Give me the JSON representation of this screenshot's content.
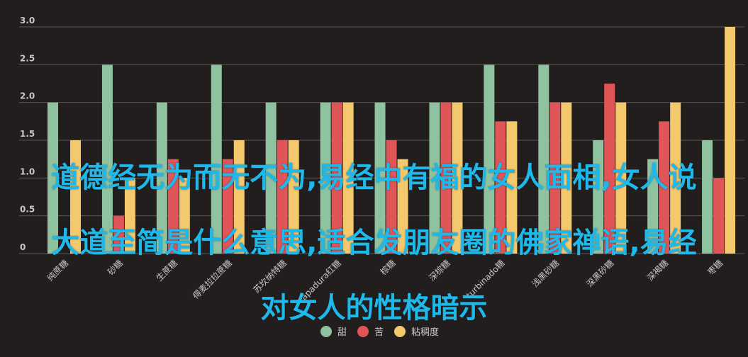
{
  "chart_data": {
    "type": "bar",
    "categories": [
      "纯蔗糖",
      "砂糖",
      "生蔗糖",
      "得麦拉拉蔗糖",
      "苏坎纳特糖",
      "rapadura红糖",
      "棕糖",
      "深棕糖",
      "turbinado糖",
      "浅黑砂糖",
      "深黑砂糖",
      "深褐糖",
      "枣糖"
    ],
    "series": [
      {
        "name": "甜",
        "color": "#8fc3a0",
        "values": [
          2.0,
          2.5,
          2.0,
          2.5,
          2.0,
          2.0,
          2.0,
          2.0,
          2.5,
          2.5,
          1.5,
          1.25,
          1.5
        ]
      },
      {
        "name": "苦",
        "color": "#e05558",
        "values": [
          0,
          0.5,
          1.25,
          1.25,
          1.5,
          2.0,
          1.5,
          2.0,
          1.75,
          2.0,
          2.25,
          1.75,
          1.0
        ]
      },
      {
        "name": "粘稠度",
        "color": "#f4c86d",
        "values": [
          1.5,
          1.0,
          1.0,
          1.5,
          1.5,
          2.0,
          1.25,
          2.0,
          1.75,
          2.0,
          2.0,
          2.0,
          3.0
        ]
      }
    ],
    "ylim": [
      0,
      3.0
    ],
    "yticks": [
      "0",
      "0.5",
      "1.0",
      "1.5",
      "2.0",
      "2.5",
      "3.0"
    ],
    "grid": true,
    "legend_position": "bottom-center"
  },
  "overlay": {
    "lines": [
      "道德经无为而无不为,易经中有福的女人面相,女人说",
      "大道至简是什么意思,适合发朋友圈的佛家禅语,易经",
      "对女人的性格暗示"
    ]
  },
  "colors": {
    "background": "#221e1e",
    "grid": "#5a5555",
    "axis_text": "#c8c8c8",
    "overlay_text": "#1fb8ea"
  }
}
